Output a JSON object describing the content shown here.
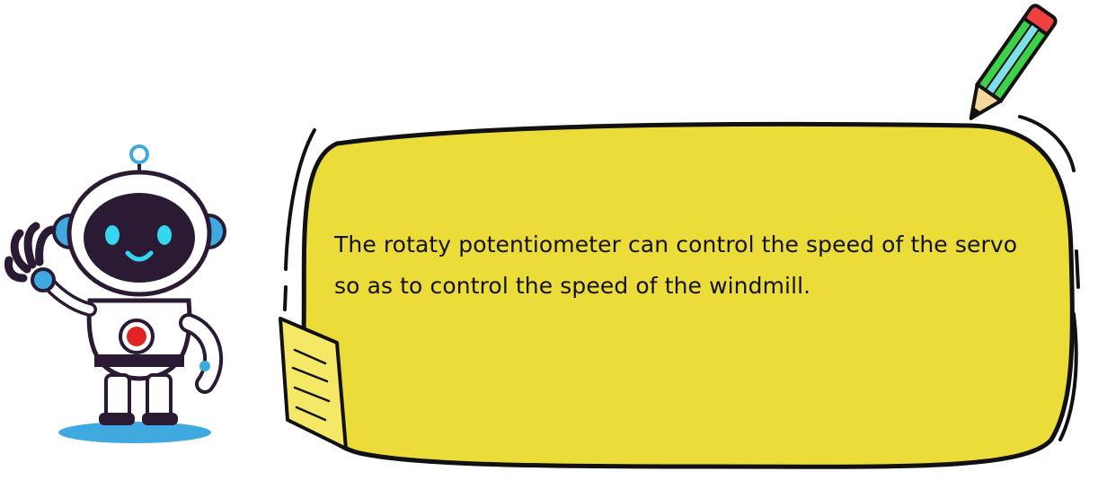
{
  "message": {
    "lines": [
      "The rotaty potentiometer can control the speed of the servo",
      "so as to control the speed of the windmill."
    ]
  },
  "colors": {
    "bubble_fill": "#ECDC3A",
    "outline": "#111111",
    "note_fill": "#F5E866",
    "robot_visor": "#2A1A33",
    "robot_eyes": "#35D6F0",
    "robot_accent": "#3FA9E0",
    "robot_button": "#E02424",
    "pencil_body": "#3FD04A",
    "pencil_stripe": "#7FE0E8",
    "pencil_eraser": "#F04040",
    "pencil_wood": "#F5D79A"
  },
  "icons": [
    "robot-mascot-icon",
    "pencil-icon",
    "sticky-note-icon"
  ]
}
